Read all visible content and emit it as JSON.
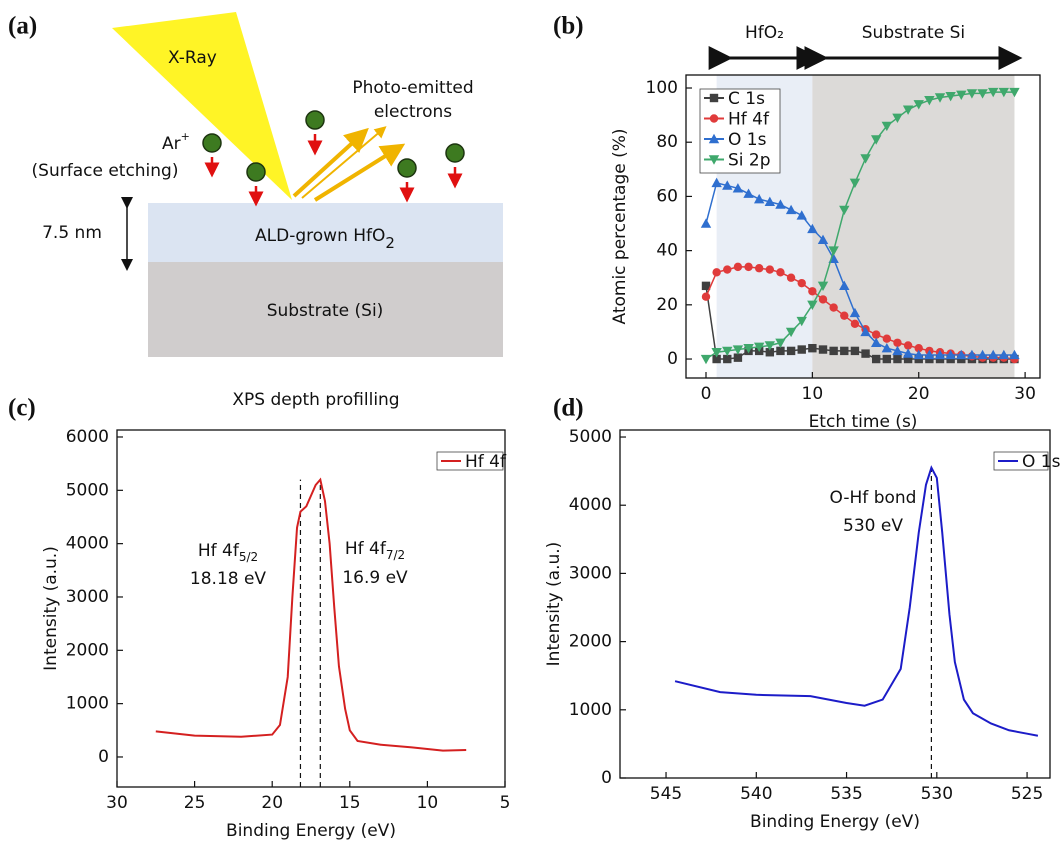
{
  "panels": [
    "(a)",
    "(b)",
    "(c)",
    "(d)"
  ],
  "diagram": {
    "xray": "X-Ray",
    "photo": [
      "Photo-emitted",
      "electrons"
    ],
    "ar": "Ar",
    "ar_sup": "+",
    "etch": "(Surface etching)",
    "thickness": "7.5 nm",
    "layer_top": "ALD-grown HfO",
    "layer_top_sub": "2",
    "layer_bottom": "Substrate (Si)",
    "caption": "XPS depth profilling"
  },
  "chart_data": [
    {
      "type": "line",
      "xlabel": "Etch time (s)",
      "ylabel": "Atomic percentage (%)",
      "xlim": [
        -1.88,
        31.4
      ],
      "ylim": [
        -7,
        104.8
      ],
      "xticks": [
        0,
        10,
        20,
        30
      ],
      "yticks": [
        0,
        20,
        40,
        60,
        80,
        100
      ],
      "legend": "upper left",
      "regions": [
        {
          "from": 1,
          "to": 10,
          "color": "#e9eef6",
          "label": "HfO₂"
        },
        {
          "from": 10,
          "to": 29,
          "color": "#dcdad8",
          "label": "Substrate Si"
        }
      ],
      "series": [
        {
          "name": "C 1s",
          "color": "#404040",
          "marker": "square",
          "x": [
            0,
            1,
            2,
            3,
            4,
            5,
            6,
            7,
            8,
            9,
            10,
            11,
            12,
            13,
            14,
            15,
            16,
            17,
            18,
            19,
            20,
            21,
            22,
            23,
            24,
            25,
            26,
            27,
            28,
            29
          ],
          "values": [
            27,
            0,
            0,
            0.5,
            3,
            3,
            2.5,
            3,
            3,
            3.5,
            4,
            3.5,
            3,
            3,
            3,
            2,
            0,
            0,
            0,
            0,
            0,
            0,
            0,
            0,
            0,
            0,
            0,
            0,
            0,
            0
          ]
        },
        {
          "name": "Hf 4f",
          "color": "#e03b3b",
          "marker": "circle",
          "x": [
            0,
            1,
            2,
            3,
            4,
            5,
            6,
            7,
            8,
            9,
            10,
            11,
            12,
            13,
            14,
            15,
            16,
            17,
            18,
            19,
            20,
            21,
            22,
            23,
            24,
            25,
            26,
            27,
            28,
            29
          ],
          "values": [
            23,
            32,
            33,
            34,
            34,
            33.5,
            33,
            32,
            30,
            28,
            25,
            22,
            19,
            16,
            13,
            11,
            9,
            7.5,
            6,
            5,
            4,
            3,
            2.5,
            2,
            1.5,
            1,
            0.5,
            0.5,
            0.5,
            0
          ]
        },
        {
          "name": "O 1s",
          "color": "#2f6fcf",
          "marker": "triangle-up",
          "x": [
            0,
            1,
            2,
            3,
            4,
            5,
            6,
            7,
            8,
            9,
            10,
            11,
            12,
            13,
            14,
            15,
            16,
            17,
            18,
            19,
            20,
            21,
            22,
            23,
            24,
            25,
            26,
            27,
            28,
            29
          ],
          "values": [
            50,
            65,
            64,
            63,
            61,
            59,
            58,
            57,
            55,
            53,
            48,
            44,
            37,
            27,
            17,
            10,
            6,
            4,
            3,
            2,
            1.5,
            1.5,
            1.5,
            1.5,
            1.5,
            1.5,
            1.5,
            1.5,
            1.5,
            1.5
          ]
        },
        {
          "name": "Si 2p",
          "color": "#3fa86c",
          "marker": "triangle-down",
          "x": [
            0,
            1,
            2,
            3,
            4,
            5,
            6,
            7,
            8,
            9,
            10,
            11,
            12,
            13,
            14,
            15,
            16,
            17,
            18,
            19,
            20,
            21,
            22,
            23,
            24,
            25,
            26,
            27,
            28,
            29
          ],
          "values": [
            0,
            2.5,
            3,
            3.5,
            4,
            4.5,
            5,
            6,
            10,
            14,
            20,
            27,
            40,
            55,
            65,
            74,
            81,
            86,
            89,
            92,
            94,
            95.5,
            96.5,
            97,
            97.5,
            98,
            98,
            98.5,
            98.5,
            98.5
          ]
        }
      ]
    },
    {
      "type": "line",
      "xlabel": "Binding Energy (eV)",
      "ylabel": "Intensity (a.u.)",
      "xlim": [
        30,
        5
      ],
      "ylim": [
        -563,
        6131
      ],
      "xticks": [
        30,
        25,
        20,
        15,
        10,
        5
      ],
      "yticks": [
        0,
        1000,
        2000,
        3000,
        4000,
        5000,
        6000
      ],
      "legend": "upper right",
      "vlines": [
        18.18,
        16.9
      ],
      "annotations": [
        {
          "text": "Hf 4f",
          "sub": "5/2"
        },
        {
          "text": "18.18 eV"
        },
        {
          "text": "Hf 4f",
          "sub": "7/2"
        },
        {
          "text": "16.9 eV"
        }
      ],
      "series": [
        {
          "name": "Hf 4f",
          "color": "#d42020",
          "marker": "none",
          "x": [
            27.5,
            25,
            22,
            20,
            19.5,
            19,
            18.7,
            18.4,
            18.18,
            17.8,
            17.5,
            17.2,
            16.9,
            16.6,
            16.3,
            16,
            15.7,
            15.3,
            15,
            14.5,
            13,
            11,
            9,
            7.5
          ],
          "values": [
            480,
            400,
            380,
            420,
            600,
            1500,
            3000,
            4300,
            4600,
            4700,
            4900,
            5100,
            5200,
            4800,
            4000,
            2800,
            1700,
            900,
            500,
            300,
            230,
            180,
            120,
            130
          ]
        }
      ]
    },
    {
      "type": "line",
      "xlabel": "Binding Energy (eV)",
      "ylabel": "Intensity (a.u.)",
      "xlim": [
        547.55,
        523.73
      ],
      "ylim": [
        0,
        5103
      ],
      "xticks": [
        545,
        540,
        535,
        530,
        525
      ],
      "yticks": [
        0,
        1000,
        2000,
        3000,
        4000,
        5000
      ],
      "legend": "upper right",
      "vlines": [
        530.3
      ],
      "annotations": [
        {
          "text": "O-Hf bond"
        },
        {
          "text": "530 eV"
        }
      ],
      "series": [
        {
          "name": "O 1s",
          "color": "#1c1cc8",
          "marker": "none",
          "x": [
            544.5,
            542,
            540,
            537,
            535,
            534,
            533,
            532,
            531.5,
            531,
            530.6,
            530.3,
            530,
            529.7,
            529.3,
            529,
            528.5,
            528,
            527,
            526,
            525,
            524.4
          ],
          "values": [
            1420,
            1260,
            1220,
            1200,
            1100,
            1060,
            1150,
            1600,
            2500,
            3600,
            4300,
            4550,
            4400,
            3600,
            2400,
            1700,
            1150,
            950,
            800,
            700,
            650,
            620
          ]
        }
      ]
    }
  ]
}
